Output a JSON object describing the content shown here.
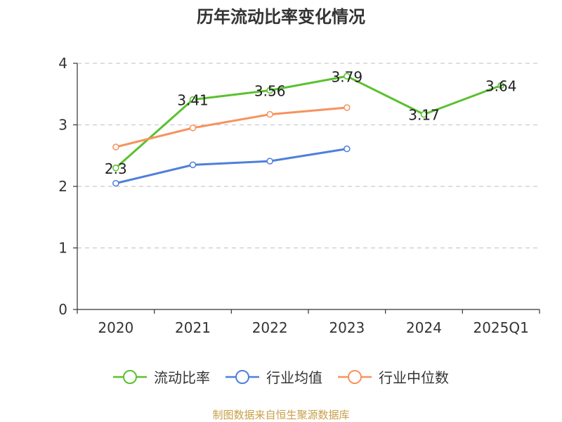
{
  "chart_data": {
    "type": "line",
    "title": "历年流动比率变化情况",
    "xlabel": "",
    "ylabel": "",
    "categories": [
      "2020",
      "2021",
      "2022",
      "2023",
      "2024",
      "2025Q1"
    ],
    "ylim": [
      0,
      4
    ],
    "yticks": [
      0,
      1,
      2,
      3,
      4
    ],
    "grid": true,
    "legend_position": "bottom",
    "series": [
      {
        "name": "流动比率",
        "color": "#5ac12f",
        "values": [
          2.3,
          3.41,
          3.56,
          3.79,
          3.17,
          3.64
        ],
        "labels": [
          "2.3",
          "3.41",
          "3.56",
          "3.79",
          "3.17",
          "3.64"
        ]
      },
      {
        "name": "行业均值",
        "color": "#4f7fdb",
        "values": [
          2.05,
          2.35,
          2.41,
          2.61,
          null,
          null
        ]
      },
      {
        "name": "行业中位数",
        "color": "#f7925e",
        "values": [
          2.64,
          2.95,
          3.17,
          3.28,
          null,
          null
        ]
      }
    ]
  },
  "source": "制图数据来自恒生聚源数据库"
}
